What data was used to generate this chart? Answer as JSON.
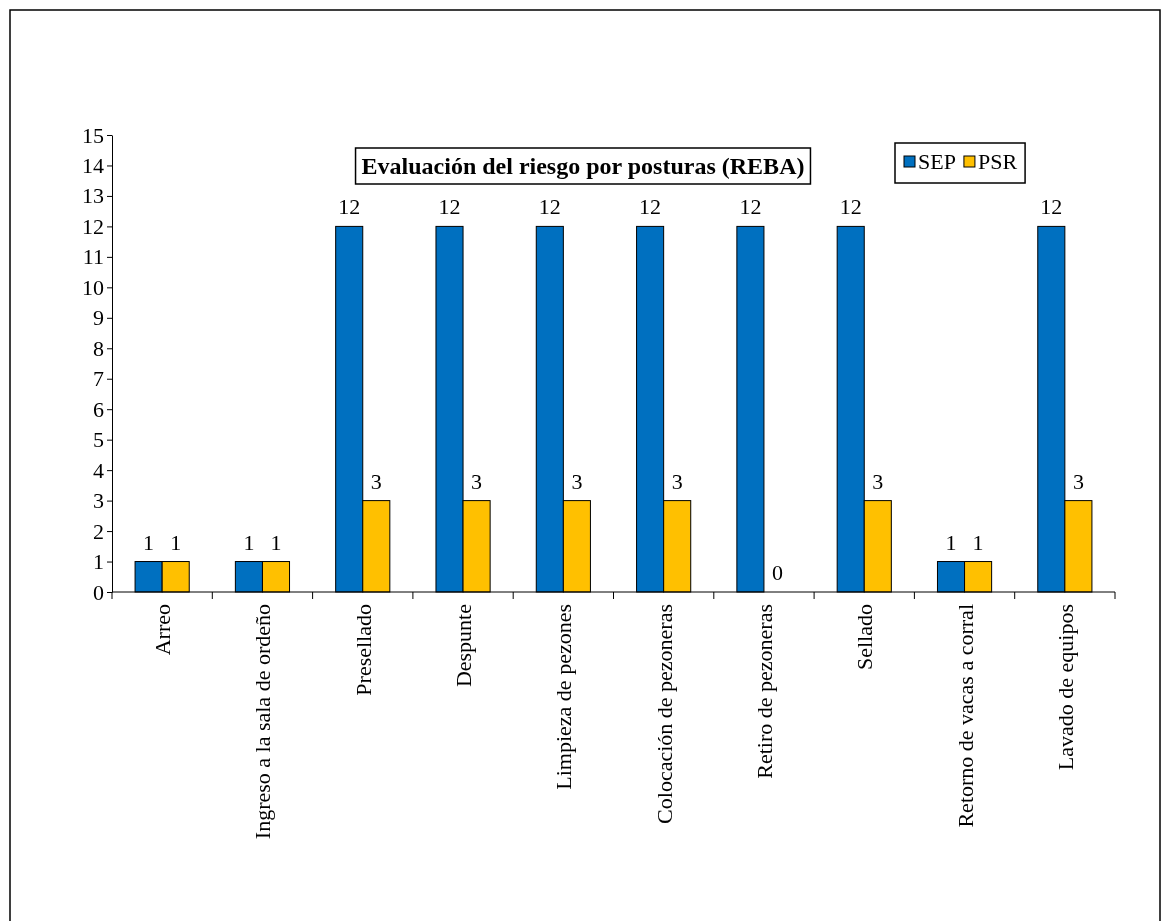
{
  "chart_data": {
    "type": "bar",
    "title": "Evaluación del riesgo por posturas (REBA)",
    "categories": [
      "Arreo",
      "Ingreso a la sala de ordeño",
      "Presellado",
      "Despunte",
      "Limpieza de pezones",
      "Colocación de pezoneras",
      "Retiro de pezoneras",
      "Sellado",
      "Retorno de vacas a corral",
      "Lavado de equipos"
    ],
    "series": [
      {
        "name": "SEP",
        "color": "#0070c0",
        "values": [
          1,
          1,
          12,
          12,
          12,
          12,
          12,
          12,
          1,
          12
        ]
      },
      {
        "name": "PSR",
        "color": "#ffc000",
        "values": [
          1,
          1,
          3,
          3,
          3,
          3,
          0,
          3,
          1,
          3
        ]
      }
    ],
    "ylim": [
      0,
      15
    ],
    "yticks": [
      0,
      1,
      2,
      3,
      4,
      5,
      6,
      7,
      8,
      9,
      10,
      11,
      12,
      13,
      14,
      15
    ],
    "grid": false,
    "legend": "top right",
    "data_labels": true
  }
}
